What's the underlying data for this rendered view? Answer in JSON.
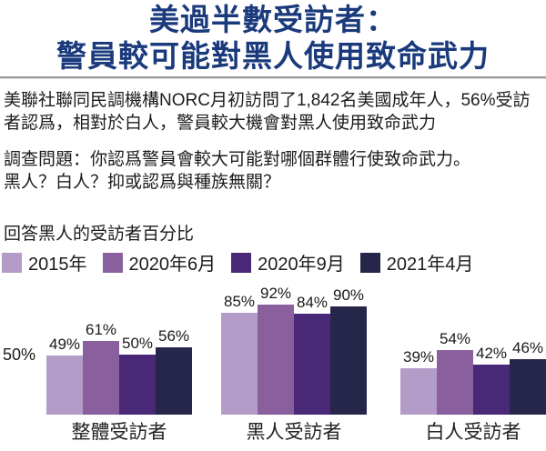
{
  "title": {
    "line1": "美過半數受訪者：",
    "line2": "警員較可能對黑人使用致命武力"
  },
  "intro": "美聯社聯同民調機構NORC月初訪問了1,842名美國成年人，56%受訪者認爲，相對於白人，警員較大機會對黑人使用致命武力",
  "question": {
    "line1": "調查問題：你認爲警員會較大可能對哪個群體行使致命武力。",
    "line2": "黑人？白人？抑或認爲與種族無關？"
  },
  "colors": {
    "title_blue": "#1a3a7c",
    "divider_gray": "#9a9a9a",
    "text": "#1c1c1c"
  },
  "chart_data": {
    "type": "bar",
    "title": "回答黑人的受訪者百分比",
    "categories": [
      "整體受訪者",
      "黑人受訪者",
      "白人受訪者"
    ],
    "series": [
      {
        "name": "2015年",
        "color": "#b49cc8",
        "values": [
          49,
          85,
          39
        ]
      },
      {
        "name": "2020年6月",
        "color": "#8a5f9e",
        "values": [
          61,
          92,
          54
        ]
      },
      {
        "name": "2020年9月",
        "color": "#4a2878",
        "values": [
          50,
          84,
          42
        ]
      },
      {
        "name": "2021年4月",
        "color": "#26264a",
        "values": [
          56,
          90,
          46
        ]
      }
    ],
    "value_suffix": "%",
    "y_axis_reference": {
      "label": "50%",
      "value": 50
    },
    "ylim": [
      0,
      100
    ],
    "legend_position": "top",
    "grid": false
  }
}
